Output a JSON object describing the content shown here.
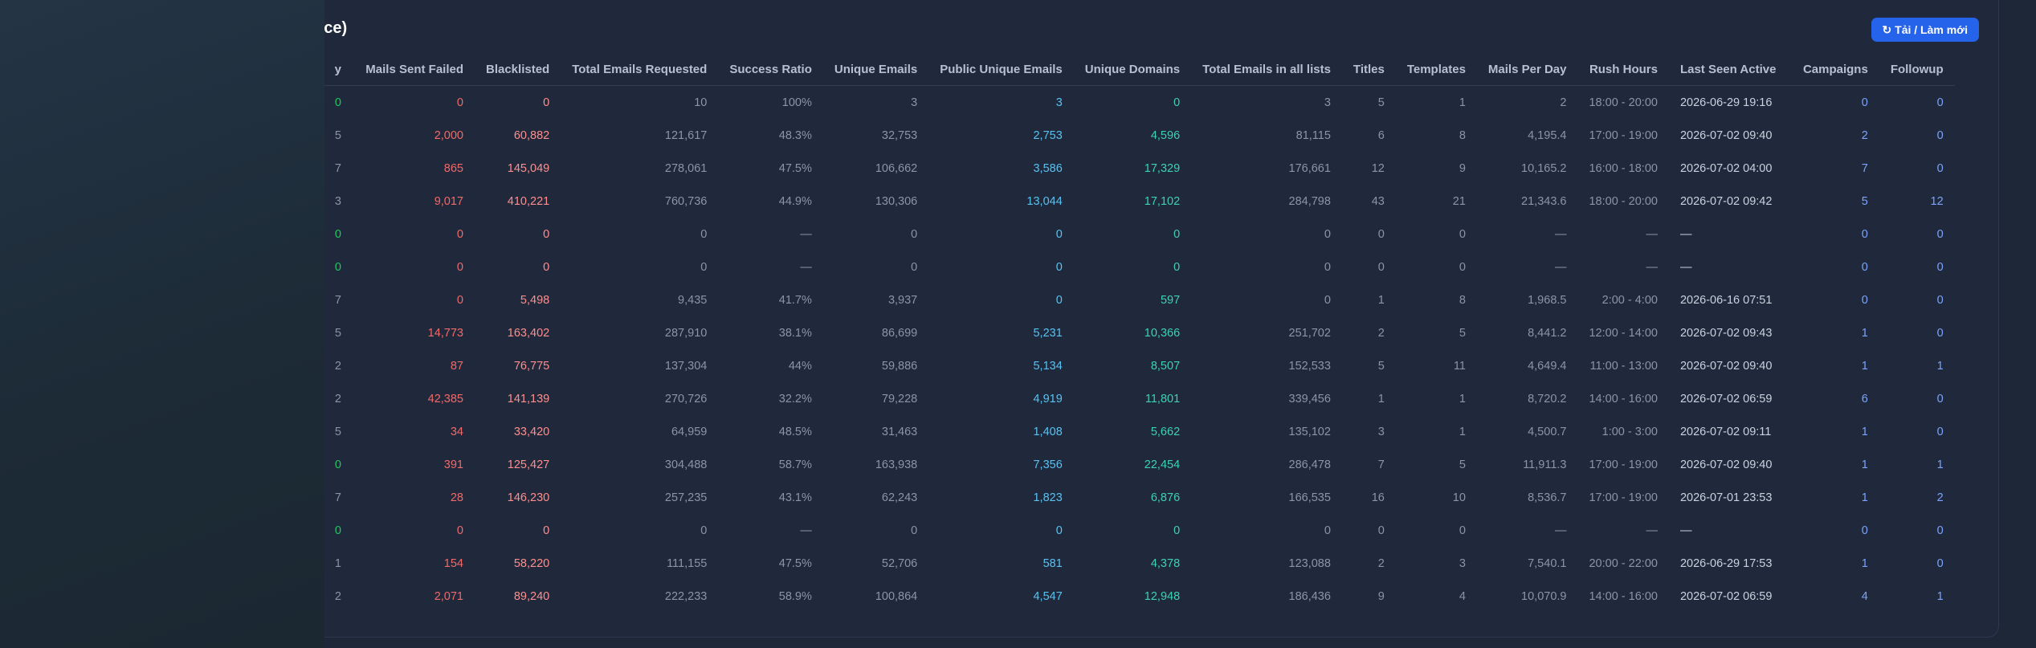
{
  "panel": {
    "title": "nce)",
    "refresh_icon": "refresh-icon",
    "refresh_label": "↻ Tải / Làm mới"
  },
  "columns": {
    "sent": "y",
    "failed": "Mails Sent Failed",
    "blacklisted": "Blacklisted",
    "requested": "Total Emails Requested",
    "success": "Success Ratio",
    "unique": "Unique Emails",
    "public_unique": "Public Unique Emails",
    "domains": "Unique Domains",
    "all_lists": "Total Emails in all lists",
    "titles": "Titles",
    "templates": "Templates",
    "per_day": "Mails Per Day",
    "rush": "Rush Hours",
    "last_seen": "Last Seen Active",
    "campaigns": "Campaigns",
    "followup": "Followup"
  },
  "rows": [
    {
      "sent": "0",
      "failed": "0",
      "blacklisted": "0",
      "requested": "10",
      "success": "100%",
      "unique": "3",
      "public_unique": "3",
      "domains": "0",
      "all_lists": "3",
      "titles": "5",
      "templates": "1",
      "per_day": "2",
      "rush": "18:00 - 20:00",
      "last_seen": "2026-06-29 19:16",
      "campaigns": "0",
      "followup": "0"
    },
    {
      "sent": "5",
      "failed": "2,000",
      "blacklisted": "60,882",
      "requested": "121,617",
      "success": "48.3%",
      "unique": "32,753",
      "public_unique": "2,753",
      "domains": "4,596",
      "all_lists": "81,115",
      "titles": "6",
      "templates": "8",
      "per_day": "4,195.4",
      "rush": "17:00 - 19:00",
      "last_seen": "2026-07-02 09:40",
      "campaigns": "2",
      "followup": "0"
    },
    {
      "sent": "7",
      "failed": "865",
      "blacklisted": "145,049",
      "requested": "278,061",
      "success": "47.5%",
      "unique": "106,662",
      "public_unique": "3,586",
      "domains": "17,329",
      "all_lists": "176,661",
      "titles": "12",
      "templates": "9",
      "per_day": "10,165.2",
      "rush": "16:00 - 18:00",
      "last_seen": "2026-07-02 04:00",
      "campaigns": "7",
      "followup": "0"
    },
    {
      "sent": "3",
      "failed": "9,017",
      "blacklisted": "410,221",
      "requested": "760,736",
      "success": "44.9%",
      "unique": "130,306",
      "public_unique": "13,044",
      "domains": "17,102",
      "all_lists": "284,798",
      "titles": "43",
      "templates": "21",
      "per_day": "21,343.6",
      "rush": "18:00 - 20:00",
      "last_seen": "2026-07-02 09:42",
      "campaigns": "5",
      "followup": "12"
    },
    {
      "sent": "0",
      "failed": "0",
      "blacklisted": "0",
      "requested": "0",
      "success": "—",
      "unique": "0",
      "public_unique": "0",
      "domains": "0",
      "all_lists": "0",
      "titles": "0",
      "templates": "0",
      "per_day": "—",
      "rush": "—",
      "last_seen": "—",
      "campaigns": "0",
      "followup": "0"
    },
    {
      "sent": "0",
      "failed": "0",
      "blacklisted": "0",
      "requested": "0",
      "success": "—",
      "unique": "0",
      "public_unique": "0",
      "domains": "0",
      "all_lists": "0",
      "titles": "0",
      "templates": "0",
      "per_day": "—",
      "rush": "—",
      "last_seen": "—",
      "campaigns": "0",
      "followup": "0"
    },
    {
      "sent": "7",
      "failed": "0",
      "blacklisted": "5,498",
      "requested": "9,435",
      "success": "41.7%",
      "unique": "3,937",
      "public_unique": "0",
      "domains": "597",
      "all_lists": "0",
      "titles": "1",
      "templates": "8",
      "per_day": "1,968.5",
      "rush": "2:00 - 4:00",
      "last_seen": "2026-06-16 07:51",
      "campaigns": "0",
      "followup": "0"
    },
    {
      "sent": "5",
      "failed": "14,773",
      "blacklisted": "163,402",
      "requested": "287,910",
      "success": "38.1%",
      "unique": "86,699",
      "public_unique": "5,231",
      "domains": "10,366",
      "all_lists": "251,702",
      "titles": "2",
      "templates": "5",
      "per_day": "8,441.2",
      "rush": "12:00 - 14:00",
      "last_seen": "2026-07-02 09:43",
      "campaigns": "1",
      "followup": "0"
    },
    {
      "sent": "2",
      "failed": "87",
      "blacklisted": "76,775",
      "requested": "137,304",
      "success": "44%",
      "unique": "59,886",
      "public_unique": "5,134",
      "domains": "8,507",
      "all_lists": "152,533",
      "titles": "5",
      "templates": "11",
      "per_day": "4,649.4",
      "rush": "11:00 - 13:00",
      "last_seen": "2026-07-02 09:40",
      "campaigns": "1",
      "followup": "1"
    },
    {
      "sent": "2",
      "failed": "42,385",
      "blacklisted": "141,139",
      "requested": "270,726",
      "success": "32.2%",
      "unique": "79,228",
      "public_unique": "4,919",
      "domains": "11,801",
      "all_lists": "339,456",
      "titles": "1",
      "templates": "1",
      "per_day": "8,720.2",
      "rush": "14:00 - 16:00",
      "last_seen": "2026-07-02 06:59",
      "campaigns": "6",
      "followup": "0"
    },
    {
      "sent": "5",
      "failed": "34",
      "blacklisted": "33,420",
      "requested": "64,959",
      "success": "48.5%",
      "unique": "31,463",
      "public_unique": "1,408",
      "domains": "5,662",
      "all_lists": "135,102",
      "titles": "3",
      "templates": "1",
      "per_day": "4,500.7",
      "rush": "1:00 - 3:00",
      "last_seen": "2026-07-02 09:11",
      "campaigns": "1",
      "followup": "0"
    },
    {
      "sent": "0",
      "failed": "391",
      "blacklisted": "125,427",
      "requested": "304,488",
      "success": "58.7%",
      "unique": "163,938",
      "public_unique": "7,356",
      "domains": "22,454",
      "all_lists": "286,478",
      "titles": "7",
      "templates": "5",
      "per_day": "11,911.3",
      "rush": "17:00 - 19:00",
      "last_seen": "2026-07-02 09:40",
      "campaigns": "1",
      "followup": "1"
    },
    {
      "sent": "7",
      "failed": "28",
      "blacklisted": "146,230",
      "requested": "257,235",
      "success": "43.1%",
      "unique": "62,243",
      "public_unique": "1,823",
      "domains": "6,876",
      "all_lists": "166,535",
      "titles": "16",
      "templates": "10",
      "per_day": "8,536.7",
      "rush": "17:00 - 19:00",
      "last_seen": "2026-07-01 23:53",
      "campaigns": "1",
      "followup": "2"
    },
    {
      "sent": "0",
      "failed": "0",
      "blacklisted": "0",
      "requested": "0",
      "success": "—",
      "unique": "0",
      "public_unique": "0",
      "domains": "0",
      "all_lists": "0",
      "titles": "0",
      "templates": "0",
      "per_day": "—",
      "rush": "—",
      "last_seen": "—",
      "campaigns": "0",
      "followup": "0"
    },
    {
      "sent": "1",
      "failed": "154",
      "blacklisted": "58,220",
      "requested": "111,155",
      "success": "47.5%",
      "unique": "52,706",
      "public_unique": "581",
      "domains": "4,378",
      "all_lists": "123,088",
      "titles": "2",
      "templates": "3",
      "per_day": "7,540.1",
      "rush": "20:00 - 22:00",
      "last_seen": "2026-06-29 17:53",
      "campaigns": "1",
      "followup": "0"
    },
    {
      "sent": "2",
      "failed": "2,071",
      "blacklisted": "89,240",
      "requested": "222,233",
      "success": "58.9%",
      "unique": "100,864",
      "public_unique": "4,547",
      "domains": "12,948",
      "all_lists": "186,436",
      "titles": "9",
      "templates": "4",
      "per_day": "10,070.9",
      "rush": "14:00 - 16:00",
      "last_seen": "2026-07-02 06:59",
      "campaigns": "4",
      "followup": "1"
    }
  ]
}
